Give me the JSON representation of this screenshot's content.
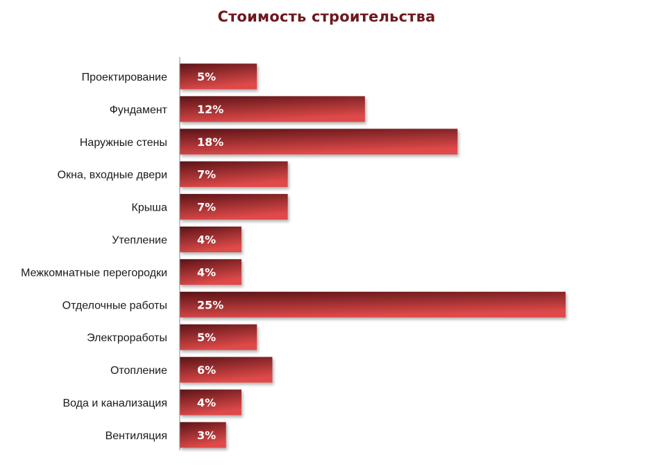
{
  "chart_data": {
    "type": "bar",
    "orientation": "horizontal",
    "title": "Стоимость строительства",
    "xlabel": "",
    "ylabel": "",
    "categories": [
      "Проектирование",
      "Фундамент",
      "Наружные стены",
      "Окна, входные двери",
      "Крыша",
      "Утепление",
      "Межкомнатные перегородки",
      "Отделочные работы",
      "Электроработы",
      "Отопление",
      "Вода и канализация",
      "Вентиляция"
    ],
    "values": [
      5,
      12,
      18,
      7,
      7,
      4,
      4,
      25,
      5,
      6,
      4,
      3
    ],
    "value_labels": [
      "5%",
      "12%",
      "18%",
      "7%",
      "7%",
      "4%",
      "4%",
      "25%",
      "5%",
      "6%",
      "4%",
      "3%"
    ],
    "xlim": [
      0,
      25
    ],
    "unit": "%",
    "grid": false,
    "legend": "none",
    "colors": {
      "bar_dark": "#5a1417",
      "bar_light": "#e04a4a",
      "title": "#6b1a1f",
      "axis": "#888888"
    }
  }
}
